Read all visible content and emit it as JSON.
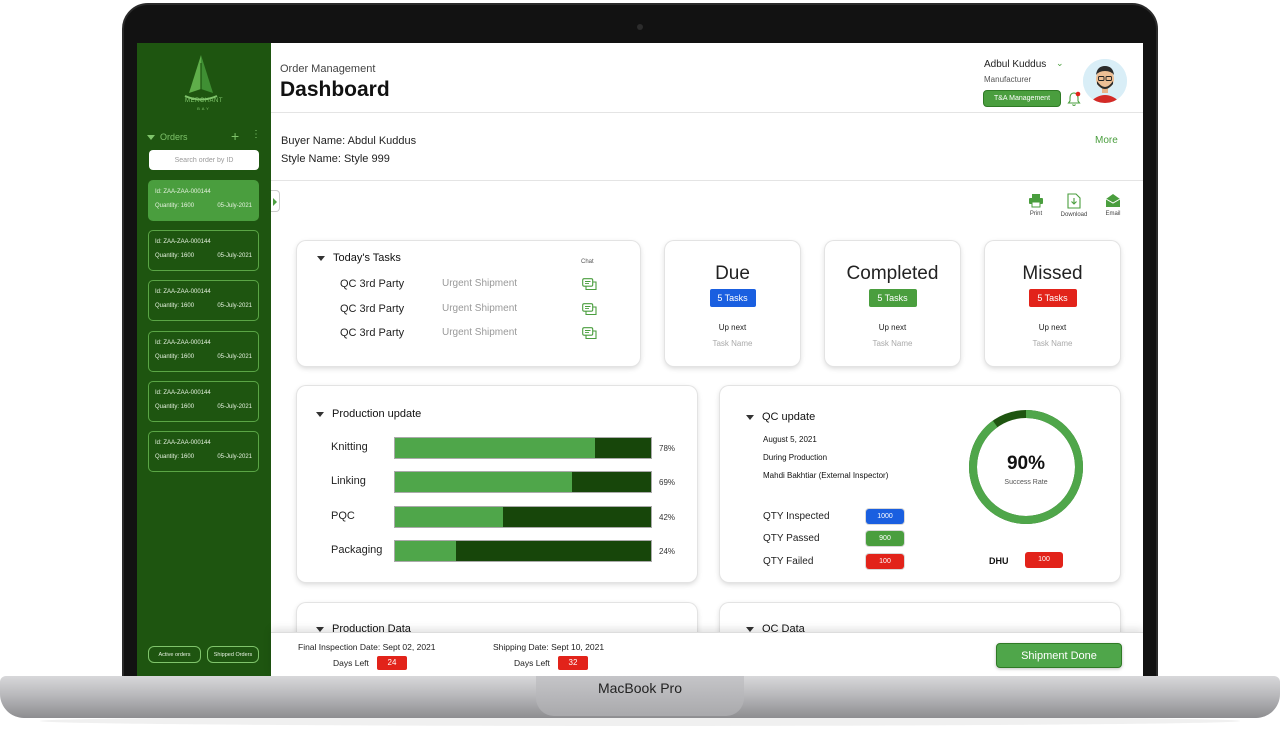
{
  "device": {
    "label": "MacBook Pro"
  },
  "sidebar": {
    "logo_text": "MERCHANT",
    "logo_sub": "BAY",
    "orders_label": "Orders",
    "search_placeholder": "Search order by ID",
    "orders": [
      {
        "id": "Id: ZAA-ZAA-000144",
        "quantity": "Quantity: 1600",
        "date": "05-July-2021",
        "active": true
      },
      {
        "id": "Id: ZAA-ZAA-000144",
        "quantity": "Quantity: 1600",
        "date": "05-July-2021",
        "active": false
      },
      {
        "id": "Id: ZAA-ZAA-000144",
        "quantity": "Quantity: 1600",
        "date": "05-July-2021",
        "active": false
      },
      {
        "id": "Id: ZAA-ZAA-000144",
        "quantity": "Quantity: 1600",
        "date": "05-July-2021",
        "active": false
      },
      {
        "id": "Id: ZAA-ZAA-000144",
        "quantity": "Quantity: 1600",
        "date": "05-July-2021",
        "active": false
      },
      {
        "id": "Id: ZAA-ZAA-000144",
        "quantity": "Quantity: 1600",
        "date": "05-July-2021",
        "active": false
      }
    ],
    "active_orders_label": "Active orders",
    "shipped_orders_label": "Shipped Orders"
  },
  "header": {
    "breadcrumb": "Order Management",
    "title": "Dashboard",
    "user_name": "Adbul Kuddus",
    "user_role": "Manufacturer",
    "ta_button": "T&A Management",
    "chevron": "⌄"
  },
  "buyer": {
    "buyer_name": "Buyer Name: Abdul Kuddus",
    "style_name": "Style Name: Style 999",
    "more": "More"
  },
  "toolbar": {
    "print": "Print",
    "download": "Download",
    "email": "Email"
  },
  "tasks": {
    "title": "Today's Tasks",
    "chat_label": "Chat",
    "items": [
      {
        "name": "QC 3rd Party",
        "note": "Urgent Shipment"
      },
      {
        "name": "QC 3rd Party",
        "note": "Urgent Shipment"
      },
      {
        "name": "QC 3rd Party",
        "note": "Urgent Shipment"
      }
    ]
  },
  "stats": [
    {
      "title": "Due",
      "badge": "5 Tasks",
      "color": "#1a5fe0",
      "up_next": "Up next",
      "task": "Task Name"
    },
    {
      "title": "Completed",
      "badge": "5 Tasks",
      "color": "#4a9e3e",
      "up_next": "Up next",
      "task": "Task Name"
    },
    {
      "title": "Missed",
      "badge": "5 Tasks",
      "color": "#e2231a",
      "up_next": "Up next",
      "task": "Task Name"
    }
  ],
  "production": {
    "title": "Production update",
    "items": [
      {
        "label": "Knitting",
        "percent": 78,
        "percent_label": "78%"
      },
      {
        "label": "Linking",
        "percent": 69,
        "percent_label": "69%"
      },
      {
        "label": "PQC",
        "percent": 42,
        "percent_label": "42%"
      },
      {
        "label": "Packaging",
        "percent": 24,
        "percent_label": "24%"
      }
    ]
  },
  "qc": {
    "title": "QC update",
    "date": "August 5, 2021",
    "stage": "During Production",
    "inspector": "Mahdi Bakhtiar (External Inspector)",
    "rows": [
      {
        "label": "QTY Inspected",
        "value": "1000",
        "color": "#1a5fe0"
      },
      {
        "label": "QTY Passed",
        "value": "900",
        "color": "#4a9e3e"
      },
      {
        "label": "QTY Failed",
        "value": "100",
        "color": "#e2231a"
      }
    ],
    "success_rate": 90,
    "success_rate_label": "90%",
    "success_rate_caption": "Success Rate",
    "dhu_label": "DHU",
    "dhu_value": "100"
  },
  "lower": {
    "production_data": "Production Data",
    "qc_data": "QC Data"
  },
  "footer": {
    "inspection_date": "Final Inspection Date: Sept 02, 2021",
    "inspection_days_label": "Days Left",
    "inspection_days": "24",
    "shipping_date": "Shipping Date: Sept 10, 2021",
    "shipping_days_label": "Days Left",
    "shipping_days": "32",
    "ship_button": "Shipment Done"
  }
}
